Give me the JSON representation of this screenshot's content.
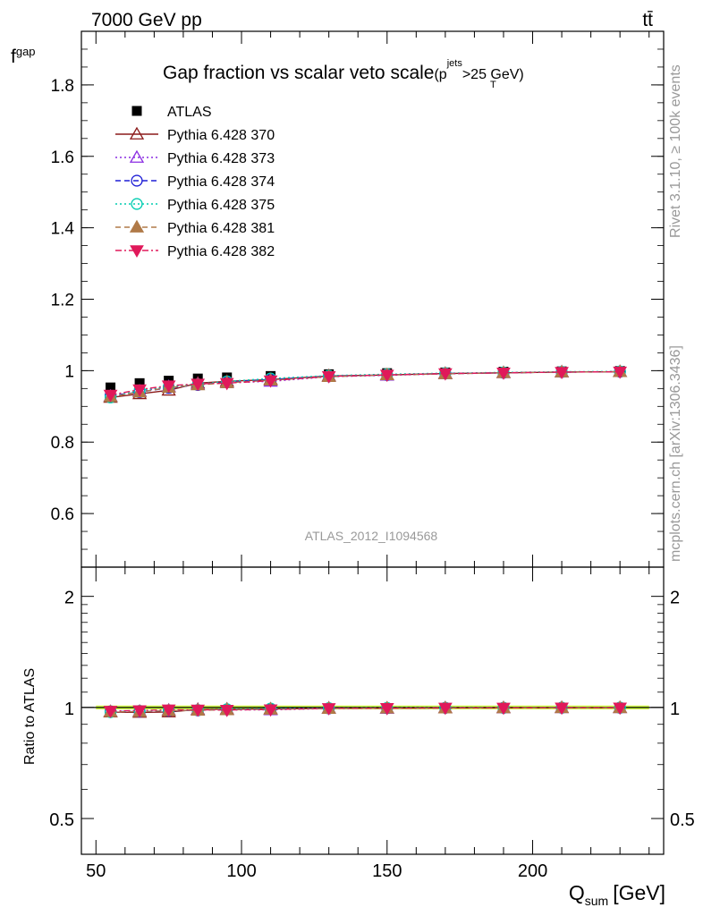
{
  "header": {
    "energy": "7000 GeV pp",
    "process": "tt̄"
  },
  "side_text": {
    "rivet": "Rivet 3.1.10, ≥ 100k events",
    "mcplots": "mcplots.cern.ch [arXiv:1306.3436]"
  },
  "chart_data": [
    {
      "type": "scatter",
      "panel": "main",
      "title_main": "Gap fraction vs scalar veto scale",
      "title_cut": "(p",
      "title_cut_sup": "jets",
      "title_cut_sub": "T",
      "title_cut_tail": ">25 GeV)",
      "ylabel": "f",
      "ylabel_sub": "gap",
      "watermark": "ATLAS_2012_I1094568",
      "xlim": [
        45,
        245
      ],
      "ylim": [
        0.45,
        1.95
      ],
      "grid": false,
      "legend_position": "top-left",
      "y_ticks": [
        "0.6",
        "0.8",
        "1",
        "1.2",
        "1.4",
        "1.6",
        "1.8"
      ],
      "x": [
        55,
        65,
        75,
        85,
        95,
        110,
        130,
        150,
        170,
        190,
        210,
        230
      ],
      "series": [
        {
          "name": "ATLAS",
          "color": "#000000",
          "marker": "square",
          "line": "none",
          "values": [
            0.953,
            0.965,
            0.972,
            0.978,
            0.981,
            0.985,
            0.99,
            0.993,
            0.995,
            0.997,
            0.998,
            0.999
          ]
        },
        {
          "name": "Pythia 6.428 370",
          "color": "#8b1a1a",
          "marker": "triangle-up-open",
          "line": "solid",
          "values": [
            0.925,
            0.935,
            0.945,
            0.965,
            0.97,
            0.975,
            0.985,
            0.988,
            0.992,
            0.994,
            0.996,
            0.997
          ]
        },
        {
          "name": "Pythia 6.428 373",
          "color": "#8a2be2",
          "marker": "triangle-up-open",
          "line": "dotted",
          "values": [
            0.928,
            0.942,
            0.955,
            0.962,
            0.966,
            0.97,
            0.983,
            0.987,
            0.991,
            0.994,
            0.996,
            0.997
          ]
        },
        {
          "name": "Pythia 6.428 374",
          "color": "#1f1fd6",
          "marker": "circle-open",
          "line": "dashed",
          "values": [
            0.93,
            0.94,
            0.952,
            0.96,
            0.968,
            0.975,
            0.984,
            0.988,
            0.992,
            0.994,
            0.996,
            0.997
          ]
        },
        {
          "name": "Pythia 6.428 375",
          "color": "#00ccb0",
          "marker": "circle-open",
          "line": "dotted",
          "values": [
            0.925,
            0.945,
            0.955,
            0.962,
            0.97,
            0.978,
            0.986,
            0.99,
            0.993,
            0.995,
            0.997,
            0.998
          ]
        },
        {
          "name": "Pythia 6.428 381",
          "color": "#b07a48",
          "marker": "triangle-up",
          "line": "dashed",
          "values": [
            0.927,
            0.94,
            0.953,
            0.96,
            0.966,
            0.973,
            0.983,
            0.988,
            0.991,
            0.994,
            0.996,
            0.997
          ]
        },
        {
          "name": "Pythia 6.428 382",
          "color": "#e0195a",
          "marker": "triangle-down",
          "line": "dashdot",
          "values": [
            0.932,
            0.947,
            0.958,
            0.963,
            0.965,
            0.972,
            0.984,
            0.988,
            0.992,
            0.994,
            0.996,
            0.997
          ]
        }
      ]
    },
    {
      "type": "scatter",
      "panel": "ratio",
      "ylabel": "Ratio to ATLAS",
      "xlabel": "Q",
      "xlabel_sub": "sum",
      "xlabel_unit": "[GeV]",
      "log_y": true,
      "xlim": [
        45,
        245
      ],
      "ylim": [
        0.4,
        2.4
      ],
      "x_ticks": [
        "50",
        "100",
        "150",
        "200"
      ],
      "y_ticks": [
        "0.5",
        "1",
        "2"
      ],
      "band_color": "#ccff33",
      "x": [
        55,
        65,
        75,
        85,
        95,
        110,
        130,
        150,
        170,
        190,
        210,
        230
      ],
      "series": [
        {
          "name": "Pythia 6.428 370",
          "values": [
            0.971,
            0.969,
            0.972,
            0.987,
            0.989,
            0.99,
            0.995,
            0.995,
            0.997,
            0.997,
            0.998,
            0.998
          ]
        },
        {
          "name": "Pythia 6.428 373",
          "values": [
            0.974,
            0.976,
            0.983,
            0.984,
            0.985,
            0.985,
            0.993,
            0.994,
            0.996,
            0.997,
            0.998,
            0.998
          ]
        },
        {
          "name": "Pythia 6.428 374",
          "values": [
            0.976,
            0.974,
            0.979,
            0.982,
            0.987,
            0.99,
            0.994,
            0.995,
            0.997,
            0.997,
            0.998,
            0.998
          ]
        },
        {
          "name": "Pythia 6.428 375",
          "values": [
            0.971,
            0.979,
            0.983,
            0.984,
            0.989,
            0.993,
            0.996,
            0.997,
            0.998,
            0.998,
            0.999,
            0.999
          ]
        },
        {
          "name": "Pythia 6.428 381",
          "values": [
            0.973,
            0.974,
            0.98,
            0.982,
            0.985,
            0.988,
            0.993,
            0.995,
            0.996,
            0.997,
            0.998,
            0.998
          ]
        },
        {
          "name": "Pythia 6.428 382",
          "values": [
            0.978,
            0.981,
            0.986,
            0.985,
            0.984,
            0.987,
            0.994,
            0.995,
            0.997,
            0.997,
            0.998,
            0.998
          ]
        }
      ]
    }
  ]
}
